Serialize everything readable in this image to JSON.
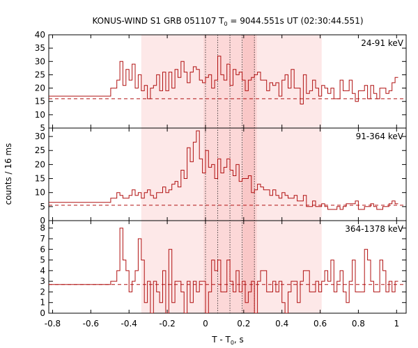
{
  "title": {
    "main": "KONUS-WIND S1 GRB 051107 T",
    "sub": "0",
    "rest": " = 9044.551s UT (02:30:44.551)"
  },
  "y_label": "counts / 16 ms",
  "x_label": {
    "main": "T - T",
    "sub": "0",
    "rest": ", s"
  },
  "colors": {
    "line": "#b01010",
    "band_light": "#fde8e8",
    "band_mid": "#fcd8d8",
    "band_dark": "#f9c7c7"
  },
  "chart_data": {
    "type": "line",
    "shared_x": {
      "range": [
        -0.82,
        1.05
      ],
      "ticks": [
        -0.8,
        -0.6,
        -0.4,
        -0.2,
        0,
        0.2,
        0.4,
        0.6,
        0.8,
        1
      ],
      "tick_labels": [
        "-0.8",
        "-0.6",
        "-0.4",
        "-0.2",
        "0",
        "0.2",
        "0.4",
        "0.6",
        "0.8",
        "1"
      ]
    },
    "shaded_intervals": [
      {
        "from": -0.336,
        "to": 0.608,
        "level": "light"
      },
      {
        "from": -0.01,
        "to": 0.27,
        "level": "mid"
      },
      {
        "from": 0.195,
        "to": 0.26,
        "level": "dark"
      }
    ],
    "vertical_markers": [
      0.0,
      0.064,
      0.128,
      0.192,
      0.256
    ],
    "panels": [
      {
        "name": "24-91 keV",
        "ylim": [
          5,
          40
        ],
        "yticks": [
          5,
          10,
          15,
          20,
          25,
          30,
          35,
          40
        ],
        "background": 16,
        "pre_level": 17,
        "bins_start": -0.496,
        "bin_width": 0.016,
        "values": [
          20,
          20,
          23,
          30,
          21,
          27,
          23,
          29,
          20,
          25,
          19,
          21,
          16,
          20,
          21,
          25,
          19,
          26,
          19,
          26,
          20,
          27,
          24,
          30,
          26,
          22,
          26,
          28,
          27,
          23,
          22,
          24,
          25,
          20,
          23,
          32,
          25,
          23,
          29,
          21,
          27,
          25,
          26,
          23,
          19,
          23,
          24,
          25,
          26,
          23,
          23,
          19,
          22,
          21,
          22,
          17,
          23,
          25,
          20,
          27,
          20,
          20,
          14,
          25,
          18,
          19,
          23,
          20,
          17,
          21,
          20,
          18,
          20,
          16,
          16,
          23,
          19,
          19,
          23,
          18,
          15,
          19,
          19,
          21,
          16,
          21,
          18,
          16,
          20,
          20,
          18,
          19,
          22,
          24
        ]
      },
      {
        "name": "91-364 keV",
        "ylim": [
          0,
          33
        ],
        "yticks": [
          0,
          5,
          10,
          15,
          20,
          25,
          30
        ],
        "background": 5.5,
        "pre_level": 6.5,
        "bins_start": -0.496,
        "bin_width": 0.016,
        "values": [
          8,
          8,
          10,
          9,
          8,
          8,
          9,
          11,
          9,
          10,
          8,
          10,
          11,
          9,
          8,
          10,
          10,
          12,
          10,
          11,
          13,
          14,
          12,
          18,
          15,
          26,
          21,
          28,
          32,
          22,
          17,
          25,
          19,
          20,
          15,
          22,
          17,
          19,
          22,
          18,
          16,
          20,
          14,
          15,
          15,
          16,
          10,
          11,
          13,
          12,
          11,
          11,
          9,
          11,
          9,
          8,
          10,
          9,
          8,
          8,
          9,
          7,
          7,
          9,
          5,
          5,
          7,
          5,
          5,
          6,
          5,
          4,
          4,
          4,
          5,
          4,
          5,
          6,
          6,
          6,
          7,
          4,
          4,
          5,
          5,
          6,
          5,
          4,
          4,
          5,
          5,
          6,
          7,
          6
        ]
      },
      {
        "name": "364-1378 keV",
        "ylim": [
          0,
          8.7
        ],
        "yticks": [
          0,
          1,
          2,
          3,
          4,
          5,
          6,
          7,
          8
        ],
        "background": 2.7,
        "pre_level": 2.7,
        "bins_start": -0.496,
        "bin_width": 0.016,
        "values": [
          3,
          3,
          4,
          8,
          5,
          4,
          2,
          3,
          4,
          7,
          5,
          1,
          3,
          0,
          3,
          2,
          1,
          4,
          0,
          6,
          1,
          3,
          3,
          2,
          0,
          3,
          1,
          3,
          2,
          3,
          3,
          0,
          2,
          5,
          4,
          5,
          2,
          2,
          5,
          3,
          2,
          4,
          2,
          3,
          1,
          2,
          3,
          0,
          3,
          4,
          4,
          2,
          2,
          3,
          2,
          3,
          1,
          0,
          2,
          3,
          3,
          1,
          3,
          4,
          4,
          2,
          2,
          3,
          2,
          3,
          4,
          3,
          5,
          2,
          3,
          4,
          2,
          1,
          3,
          5,
          2,
          2,
          2,
          6,
          5,
          3,
          2,
          2,
          5,
          4,
          2,
          3,
          2,
          3
        ]
      }
    ]
  }
}
